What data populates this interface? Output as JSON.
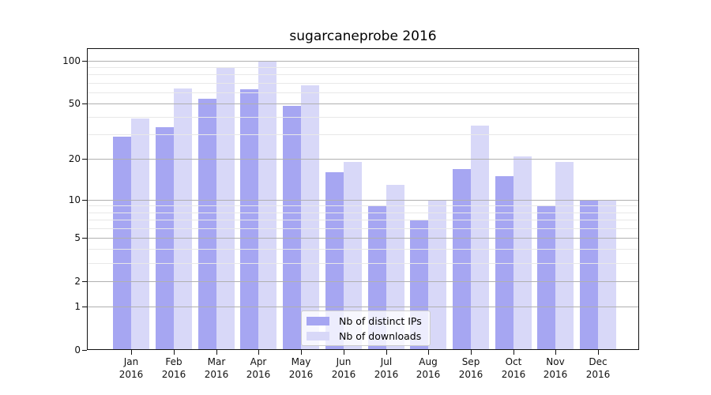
{
  "chart_data": {
    "type": "bar",
    "title": "sugarcaneprobe 2016",
    "months": [
      "Jan",
      "Feb",
      "Mar",
      "Apr",
      "May",
      "Jun",
      "Jul",
      "Aug",
      "Sep",
      "Oct",
      "Nov",
      "Dec"
    ],
    "year": "2016",
    "series": [
      {
        "name": "Nb of distinct IPs",
        "color": "#a6a6f2",
        "values": [
          29,
          34,
          54,
          63,
          48,
          16,
          9,
          7,
          17,
          15,
          9,
          10
        ]
      },
      {
        "name": "Nb of downloads",
        "color": "#d8d8f8",
        "values": [
          39,
          64,
          90,
          100,
          67,
          19,
          13,
          10,
          35,
          21,
          19,
          10
        ]
      }
    ],
    "y_scale": "symlog",
    "ylim": [
      0,
      122
    ],
    "y_major_ticks": [
      100,
      50,
      20,
      10,
      5,
      2,
      1,
      0
    ],
    "y_minor_ticks": [
      90,
      80,
      70,
      60,
      40,
      30,
      9,
      8,
      7,
      6,
      4,
      3
    ],
    "grid": true,
    "grid_over_bars": true,
    "major_grid_color": "#b0b0b0",
    "minor_grid_color": "#e8e8e8",
    "legend_position": "lower center (inside plot)",
    "xlabel": "",
    "ylabel": ""
  }
}
